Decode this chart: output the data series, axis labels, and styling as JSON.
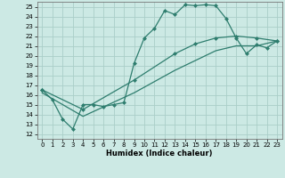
{
  "xlabel": "Humidex (Indice chaleur)",
  "xlim": [
    -0.5,
    23.5
  ],
  "ylim": [
    11.5,
    25.5
  ],
  "xticks": [
    0,
    1,
    2,
    3,
    4,
    5,
    6,
    7,
    8,
    9,
    10,
    11,
    12,
    13,
    14,
    15,
    16,
    17,
    18,
    19,
    20,
    21,
    22,
    23
  ],
  "yticks": [
    12,
    13,
    14,
    15,
    16,
    17,
    18,
    19,
    20,
    21,
    22,
    23,
    24,
    25
  ],
  "bg_color": "#cce9e4",
  "line_color": "#2e7d6e",
  "grid_color": "#aacec8",
  "line1_x": [
    0,
    1,
    2,
    3,
    4,
    5,
    6,
    7,
    8,
    9,
    10,
    11,
    12,
    13,
    14,
    15,
    16,
    17,
    18,
    19,
    20,
    21,
    22,
    23
  ],
  "line1_y": [
    16.5,
    15.5,
    13.5,
    12.5,
    15.0,
    15.0,
    14.8,
    15.0,
    15.2,
    19.2,
    21.8,
    22.8,
    24.6,
    24.2,
    25.2,
    25.1,
    25.2,
    25.1,
    23.8,
    21.8,
    20.2,
    21.1,
    20.8,
    21.5
  ],
  "line2_x": [
    0,
    4,
    9,
    13,
    15,
    17,
    19,
    21,
    23
  ],
  "line2_y": [
    16.5,
    14.5,
    17.5,
    20.2,
    21.2,
    21.8,
    22.0,
    21.8,
    21.5
  ],
  "line3_x": [
    0,
    4,
    9,
    13,
    15,
    17,
    19,
    21,
    23
  ],
  "line3_y": [
    16.2,
    13.8,
    16.2,
    18.5,
    19.5,
    20.5,
    21.0,
    21.0,
    21.5
  ],
  "marker": "D",
  "marker_size": 2.5,
  "linewidth": 0.9
}
